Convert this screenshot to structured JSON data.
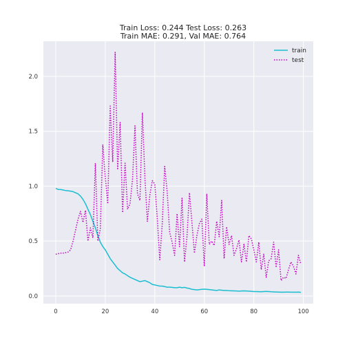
{
  "chart_data": {
    "type": "line",
    "title": "Train Loss: 0.244 Test Loss: 0.263",
    "subtitle": "Train MAE: 0.291, Val MAE: 0.764",
    "xlabel": "",
    "ylabel": "",
    "xlim": [
      -5,
      104
    ],
    "ylim": [
      -0.07,
      2.32
    ],
    "xticks": [
      0,
      20,
      40,
      60,
      80,
      100
    ],
    "yticks": [
      0.0,
      0.5,
      1.0,
      1.5,
      2.0
    ],
    "xtick_labels": [
      "0",
      "20",
      "40",
      "60",
      "80",
      "100"
    ],
    "ytick_labels": [
      "0.0",
      "0.5",
      "1.0",
      "1.5",
      "2.0"
    ],
    "grid": true,
    "legend_position": "top-right",
    "series": [
      {
        "name": "train",
        "color": "#17becf",
        "style": "solid",
        "x": [
          0,
          1,
          2,
          3,
          4,
          5,
          6,
          7,
          8,
          9,
          10,
          11,
          12,
          13,
          14,
          15,
          16,
          17,
          18,
          19,
          20,
          21,
          22,
          23,
          24,
          25,
          26,
          27,
          28,
          29,
          30,
          31,
          32,
          33,
          34,
          35,
          36,
          37,
          38,
          39,
          40,
          41,
          42,
          43,
          44,
          45,
          46,
          47,
          48,
          49,
          50,
          51,
          52,
          53,
          54,
          55,
          56,
          57,
          58,
          59,
          60,
          61,
          62,
          63,
          64,
          65,
          66,
          67,
          68,
          69,
          70,
          71,
          72,
          73,
          74,
          75,
          76,
          77,
          78,
          79,
          80,
          81,
          82,
          83,
          84,
          85,
          86,
          87,
          88,
          89,
          90,
          91,
          92,
          93,
          94,
          95,
          96,
          97,
          98,
          99
        ],
        "y": [
          0.98,
          0.97,
          0.97,
          0.965,
          0.96,
          0.958,
          0.955,
          0.95,
          0.94,
          0.93,
          0.91,
          0.88,
          0.84,
          0.79,
          0.74,
          0.68,
          0.62,
          0.55,
          0.49,
          0.45,
          0.42,
          0.38,
          0.34,
          0.31,
          0.28,
          0.25,
          0.23,
          0.21,
          0.2,
          0.185,
          0.17,
          0.16,
          0.15,
          0.14,
          0.13,
          0.135,
          0.14,
          0.13,
          0.12,
          0.105,
          0.1,
          0.095,
          0.09,
          0.09,
          0.085,
          0.08,
          0.08,
          0.078,
          0.075,
          0.075,
          0.08,
          0.075,
          0.078,
          0.072,
          0.068,
          0.06,
          0.058,
          0.055,
          0.058,
          0.06,
          0.062,
          0.06,
          0.058,
          0.055,
          0.052,
          0.05,
          0.055,
          0.052,
          0.05,
          0.05,
          0.048,
          0.047,
          0.046,
          0.045,
          0.044,
          0.045,
          0.046,
          0.045,
          0.044,
          0.042,
          0.04,
          0.04,
          0.039,
          0.038,
          0.04,
          0.041,
          0.04,
          0.038,
          0.037,
          0.036,
          0.035,
          0.034,
          0.034,
          0.035,
          0.035,
          0.034,
          0.034,
          0.034,
          0.035,
          0.033
        ]
      },
      {
        "name": "test",
        "color": "#bf00bf",
        "style": "dotted",
        "x": [
          0,
          1,
          2,
          3,
          4,
          5,
          6,
          7,
          8,
          9,
          10,
          11,
          12,
          13,
          14,
          15,
          16,
          17,
          18,
          19,
          20,
          21,
          22,
          23,
          24,
          25,
          26,
          27,
          28,
          29,
          30,
          31,
          32,
          33,
          34,
          35,
          36,
          37,
          38,
          39,
          40,
          41,
          42,
          43,
          44,
          45,
          46,
          47,
          48,
          49,
          50,
          51,
          52,
          53,
          54,
          55,
          56,
          57,
          58,
          59,
          60,
          61,
          62,
          63,
          64,
          65,
          66,
          67,
          68,
          69,
          70,
          71,
          72,
          73,
          74,
          75,
          76,
          77,
          78,
          79,
          80,
          81,
          82,
          83,
          84,
          85,
          86,
          87,
          88,
          89,
          90,
          91,
          92,
          93,
          94,
          95,
          96,
          97,
          98,
          99
        ],
        "y": [
          0.38,
          0.385,
          0.39,
          0.39,
          0.395,
          0.4,
          0.42,
          0.5,
          0.6,
          0.7,
          0.77,
          0.67,
          0.78,
          0.5,
          0.62,
          0.53,
          1.21,
          0.5,
          0.61,
          1.38,
          1.08,
          0.84,
          1.73,
          1.22,
          2.22,
          1.15,
          1.58,
          0.76,
          1.21,
          0.79,
          0.84,
          1.06,
          1.55,
          0.93,
          0.87,
          1.67,
          1.08,
          0.68,
          0.92,
          1.05,
          1.02,
          0.71,
          0.33,
          0.65,
          1.18,
          0.95,
          0.58,
          0.49,
          0.37,
          0.75,
          0.45,
          0.89,
          0.31,
          0.54,
          0.94,
          0.67,
          0.39,
          0.55,
          0.66,
          0.7,
          0.27,
          0.93,
          0.47,
          0.5,
          0.46,
          0.68,
          0.54,
          0.87,
          0.34,
          0.63,
          0.47,
          0.55,
          0.37,
          0.43,
          0.51,
          0.31,
          0.47,
          0.31,
          0.55,
          0.52,
          0.42,
          0.31,
          0.49,
          0.24,
          0.38,
          0.17,
          0.32,
          0.34,
          0.49,
          0.26,
          0.42,
          0.14,
          0.17,
          0.16,
          0.24,
          0.31,
          0.27,
          0.2,
          0.37,
          0.29
        ]
      }
    ]
  }
}
